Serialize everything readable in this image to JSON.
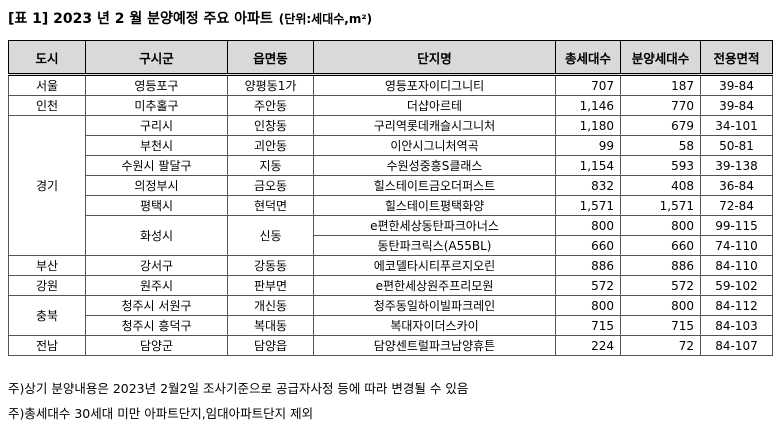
{
  "header": {
    "title": "[표 1] 2023 년 2 월 분양예정 주요 아파트",
    "unit": "(단위:세대수,m²)"
  },
  "table": {
    "columns": [
      "도시",
      "구시군",
      "읍면동",
      "단지명",
      "총세대수",
      "분양세대수",
      "전용면적"
    ],
    "groups": [
      {
        "city": "서울",
        "districts": [
          {
            "district": "영등포구",
            "town": "양평동1가",
            "complexes": [
              {
                "name": "영등포자이디그니티",
                "total": "707",
                "sale": "187",
                "area": "39-84"
              }
            ]
          }
        ]
      },
      {
        "city": "인천",
        "districts": [
          {
            "district": "미추홀구",
            "town": "주안동",
            "complexes": [
              {
                "name": "더샵아르테",
                "total": "1,146",
                "sale": "770",
                "area": "39-84"
              }
            ]
          }
        ]
      },
      {
        "city": "경기",
        "districts": [
          {
            "district": "구리시",
            "town": "인창동",
            "complexes": [
              {
                "name": "구리역롯데캐슬시그니처",
                "total": "1,180",
                "sale": "679",
                "area": "34-101"
              }
            ]
          },
          {
            "district": "부천시",
            "town": "괴안동",
            "complexes": [
              {
                "name": "이안시그니처역곡",
                "total": "99",
                "sale": "58",
                "area": "50-81"
              }
            ]
          },
          {
            "district": "수원시 팔달구",
            "town": "지동",
            "complexes": [
              {
                "name": "수원성중흥S클래스",
                "total": "1,154",
                "sale": "593",
                "area": "39-138"
              }
            ]
          },
          {
            "district": "의정부시",
            "town": "금오동",
            "complexes": [
              {
                "name": "힐스테이트금오더퍼스트",
                "total": "832",
                "sale": "408",
                "area": "36-84"
              }
            ]
          },
          {
            "district": "평택시",
            "town": "현덕면",
            "complexes": [
              {
                "name": "힐스테이트평택화양",
                "total": "1,571",
                "sale": "1,571",
                "area": "72-84"
              }
            ]
          },
          {
            "district": "화성시",
            "town": "신동",
            "complexes": [
              {
                "name": "e편한세상동탄파크아너스",
                "total": "800",
                "sale": "800",
                "area": "99-115"
              },
              {
                "name": "동탄파크릭스(A55BL)",
                "total": "660",
                "sale": "660",
                "area": "74-110"
              }
            ]
          }
        ]
      },
      {
        "city": "부산",
        "districts": [
          {
            "district": "강서구",
            "town": "강동동",
            "complexes": [
              {
                "name": "에코델타시티푸르지오린",
                "total": "886",
                "sale": "886",
                "area": "84-110"
              }
            ]
          }
        ]
      },
      {
        "city": "강원",
        "districts": [
          {
            "district": "원주시",
            "town": "판부면",
            "complexes": [
              {
                "name": "e편한세상원주프리모원",
                "total": "572",
                "sale": "572",
                "area": "59-102"
              }
            ]
          }
        ]
      },
      {
        "city": "충북",
        "districts": [
          {
            "district": "청주시 서원구",
            "town": "개신동",
            "complexes": [
              {
                "name": "청주동일하이빌파크레인",
                "total": "800",
                "sale": "800",
                "area": "84-112"
              }
            ]
          },
          {
            "district": "청주시 흥덕구",
            "town": "복대동",
            "complexes": [
              {
                "name": "복대자이더스카이",
                "total": "715",
                "sale": "715",
                "area": "84-103"
              }
            ]
          }
        ]
      },
      {
        "city": "전남",
        "districts": [
          {
            "district": "담양군",
            "town": "담양읍",
            "complexes": [
              {
                "name": "담양센트럴파크남양휴튼",
                "total": "224",
                "sale": "72",
                "area": "84-107"
              }
            ]
          }
        ]
      }
    ]
  },
  "notes": [
    "주)상기 분양내용은 2023년 2월2일 조사기준으로 공급자사정 등에 따라 변경될 수 있음",
    "주)총세대수 30세대 미만 아파트단지,임대아파트단지 제외"
  ]
}
